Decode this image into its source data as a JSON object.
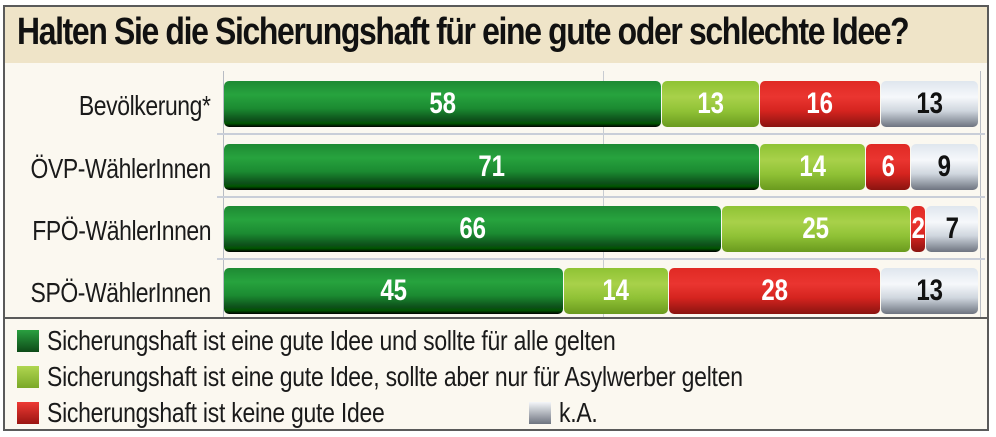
{
  "chart_data": {
    "type": "bar",
    "orientation": "horizontal",
    "stacked": true,
    "title": "Halten Sie die Sicherungshaft für eine gute oder schlechte Idee?",
    "categories": [
      "Bevölkerung*",
      "ÖVP-WählerInnen",
      "FPÖ-WählerInnen",
      "SPÖ-WählerInnen"
    ],
    "series": [
      {
        "name": "Sicherungshaft ist eine gute Idee und sollte für alle gelten",
        "color": "#1f8f35",
        "values": [
          58,
          71,
          66,
          45
        ]
      },
      {
        "name": "Sicherungshaft ist eine gute Idee, sollte aber nur für Asylwerber gelten",
        "color": "#9cc93e",
        "values": [
          13,
          14,
          25,
          14
        ]
      },
      {
        "name": "Sicherungshaft ist keine gute Idee",
        "color": "#e02a24",
        "values": [
          16,
          6,
          2,
          28
        ]
      },
      {
        "name": "k.A.",
        "color": "#dfe5ec",
        "values": [
          13,
          9,
          7,
          13
        ]
      }
    ],
    "xlabel": "",
    "ylabel": "",
    "xlim": [
      0,
      100
    ],
    "unit": "%",
    "grid": false,
    "legend_position": "bottom"
  },
  "title": "Halten Sie die Sicherungshaft für eine gute oder schlechte Idee?",
  "rows": [
    {
      "label": "Bevölkerung*",
      "values": [
        "58",
        "13",
        "16",
        "13"
      ]
    },
    {
      "label": "ÖVP-WählerInnen",
      "values": [
        "71",
        "14",
        "6",
        "9"
      ]
    },
    {
      "label": "FPÖ-WählerInnen",
      "values": [
        "66",
        "25",
        "2",
        "7"
      ]
    },
    {
      "label": "SPÖ-WählerInnen",
      "values": [
        "45",
        "14",
        "28",
        "13"
      ]
    }
  ],
  "legend": [
    "Sicherungshaft ist eine gute Idee und sollte für alle gelten",
    "Sicherungshaft ist eine gute Idee, sollte aber nur für Asylwerber gelten",
    "Sicherungshaft ist keine gute Idee",
    "k.A."
  ]
}
